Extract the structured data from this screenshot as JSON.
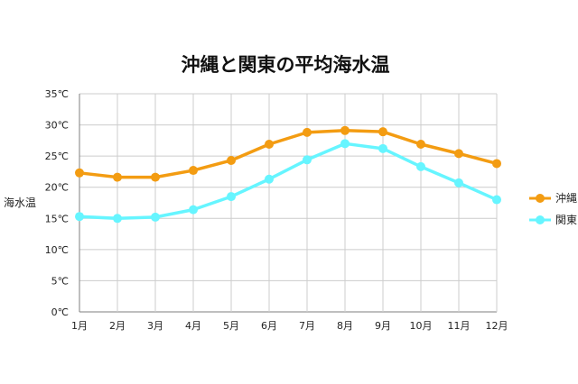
{
  "chart_data": {
    "type": "line",
    "title": "沖縄と関東の平均海水温",
    "ylabel": "海水温",
    "xlabel": "",
    "categories": [
      "1月",
      "2月",
      "3月",
      "4月",
      "5月",
      "6月",
      "7月",
      "8月",
      "9月",
      "10月",
      "11月",
      "12月"
    ],
    "y_tick_labels": [
      "0℃",
      "5℃",
      "10℃",
      "15℃",
      "20℃",
      "25℃",
      "30℃",
      "35℃"
    ],
    "ylim": [
      0,
      35
    ],
    "grid": true,
    "legend_position": "right",
    "series": [
      {
        "name": "沖縄",
        "color": "#f39c12",
        "values": [
          22.3,
          21.6,
          21.6,
          22.7,
          24.3,
          26.9,
          28.8,
          29.1,
          28.9,
          26.9,
          25.4,
          23.8
        ]
      },
      {
        "name": "関東",
        "color": "#66f5ff",
        "values": [
          15.3,
          15.0,
          15.2,
          16.4,
          18.5,
          21.3,
          24.4,
          27.0,
          26.2,
          23.3,
          20.7,
          18.0
        ]
      }
    ]
  }
}
